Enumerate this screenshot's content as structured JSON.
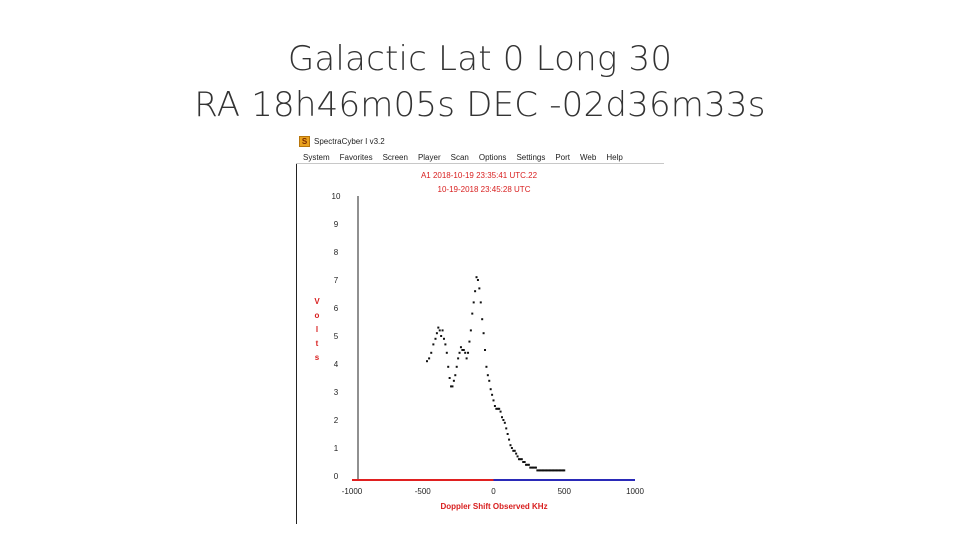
{
  "slide": {
    "title_line1": "Galactic Lat 0 Long 30",
    "title_line2": "RA 18h46m05s DEC -02d36m33s"
  },
  "app": {
    "window_title": "SpectraCyber I v3.2",
    "icon": "spectracyber-app-icon",
    "menu": [
      "System",
      "Favorites",
      "Screen",
      "Player",
      "Scan",
      "Options",
      "Settings",
      "Port",
      "Web",
      "Help"
    ]
  },
  "chart_data": {
    "type": "scatter",
    "header_lines": [
      "A1 2018-10-19 23:35:41 UTC.22",
      "10-19-2018  23:45:28 UTC"
    ],
    "xlabel": "Doppler Shift   Observed KHz",
    "ylabel": "Volts",
    "xlim": [
      -1000,
      1000
    ],
    "ylim": [
      0,
      10
    ],
    "xticks": [
      -1000,
      -500,
      0,
      500,
      1000
    ],
    "yticks": [
      0,
      1,
      2,
      3,
      4,
      5,
      6,
      7,
      8,
      9,
      10
    ],
    "colors": {
      "points": "#111111",
      "baseline_left": "#e02020",
      "baseline_right": "#2a2ab8",
      "labels": "#d81e1e"
    },
    "series": [
      {
        "x": [
          -470,
          -455,
          -440,
          -425,
          -410,
          -400,
          -390,
          -380,
          -370,
          -360,
          -350,
          -340,
          -330,
          -320,
          -310,
          -300,
          -290,
          -280,
          -270,
          -260,
          -250,
          -240,
          -230,
          -220,
          -210,
          -200,
          -190,
          -180,
          -170,
          -160,
          -150,
          -140,
          -130,
          -120,
          -110,
          -100,
          -90,
          -80,
          -70,
          -60,
          -50,
          -40,
          -30,
          -20,
          -10,
          0,
          10,
          20,
          30,
          40,
          50,
          60,
          70,
          80,
          90,
          100,
          110,
          120,
          130,
          140,
          150,
          160,
          170,
          180,
          190,
          200,
          210,
          220,
          230,
          240,
          250,
          260,
          270,
          280,
          290,
          300,
          310,
          320,
          330,
          340,
          350,
          360,
          370,
          380,
          390,
          400,
          410,
          420,
          430,
          440,
          450,
          460,
          470,
          480,
          490,
          500
        ],
        "y": [
          4.1,
          4.2,
          4.4,
          4.7,
          4.9,
          5.1,
          5.3,
          5.2,
          5.0,
          5.2,
          4.9,
          4.7,
          4.4,
          3.9,
          3.5,
          3.2,
          3.2,
          3.4,
          3.6,
          3.9,
          4.2,
          4.4,
          4.6,
          4.5,
          4.5,
          4.4,
          4.2,
          4.4,
          4.8,
          5.2,
          5.8,
          6.2,
          6.6,
          7.1,
          7.0,
          6.7,
          6.2,
          5.6,
          5.1,
          4.5,
          3.9,
          3.6,
          3.4,
          3.1,
          2.9,
          2.7,
          2.5,
          2.4,
          2.4,
          2.4,
          2.3,
          2.1,
          2.0,
          1.9,
          1.7,
          1.5,
          1.3,
          1.1,
          1.0,
          0.9,
          0.9,
          0.8,
          0.7,
          0.6,
          0.6,
          0.6,
          0.5,
          0.5,
          0.4,
          0.4,
          0.4,
          0.3,
          0.3,
          0.3,
          0.3,
          0.3,
          0.2,
          0.2,
          0.2,
          0.2,
          0.2,
          0.2,
          0.2,
          0.2,
          0.2,
          0.2,
          0.2,
          0.2,
          0.2,
          0.2,
          0.2,
          0.2,
          0.2,
          0.2,
          0.2,
          0.2
        ]
      }
    ]
  }
}
